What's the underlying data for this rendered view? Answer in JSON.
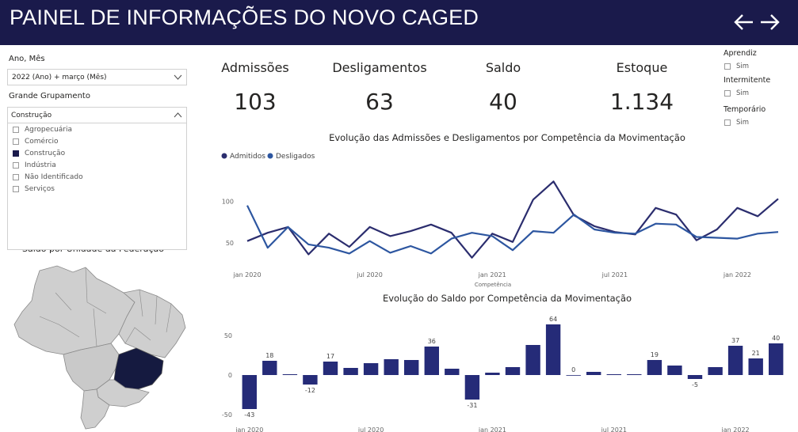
{
  "header": {
    "title": "PAINEL DE INFORMAÇÕES DO NOVO CAGED"
  },
  "colors": {
    "header_bg": "#1a1a4b",
    "admitidos": "#2b2d6e",
    "desligados": "#2d56a0",
    "bar": "#252b78",
    "map_highlight": "#151a40",
    "map_fill": "#c8c8c8"
  },
  "filters": {
    "period_label": "Ano, Mês",
    "period_value": "2022 (Ano) + março (Mês)",
    "group_label": "Grande Grupamento",
    "group_value": "Construção",
    "group_items": [
      {
        "label": "Agropecuária",
        "checked": false
      },
      {
        "label": "Comércio",
        "checked": false
      },
      {
        "label": "Construção",
        "checked": true
      },
      {
        "label": "Indústria",
        "checked": false
      },
      {
        "label": "Não Identificado",
        "checked": false
      },
      {
        "label": "Serviços",
        "checked": false
      }
    ]
  },
  "kpis": [
    {
      "label": "Admissões",
      "value": "103"
    },
    {
      "label": "Desligamentos",
      "value": "63"
    },
    {
      "label": "Saldo",
      "value": "40"
    },
    {
      "label": "Estoque",
      "value": "1.134"
    }
  ],
  "side_filters": [
    {
      "title": "Aprendiz",
      "option": "Sim"
    },
    {
      "title": "Intermitente",
      "option": "Sim"
    },
    {
      "title": "Temporário",
      "option": "Sim"
    }
  ],
  "map": {
    "title": "Saldo por Unidade da Federação"
  },
  "chart_data": [
    {
      "type": "line",
      "title": "Evolução das Admissões e Desligamentos por Competência da Movimentação",
      "xlabel": "Competência",
      "x_ticks": [
        "jan 2020",
        "jul 2020",
        "jan 2021",
        "jul 2021",
        "jan 2022"
      ],
      "y_ticks": [
        50,
        100
      ],
      "ylim": [
        25,
        130
      ],
      "series": [
        {
          "name": "Admitidos",
          "values": [
            52,
            62,
            69,
            36,
            61,
            45,
            69,
            58,
            64,
            72,
            62,
            32,
            61,
            51,
            102,
            124,
            83,
            70,
            63,
            60,
            92,
            84,
            53,
            66,
            92,
            82,
            103
          ]
        },
        {
          "name": "Desligados",
          "values": [
            95,
            44,
            69,
            48,
            44,
            37,
            52,
            38,
            46,
            37,
            55,
            62,
            58,
            41,
            64,
            62,
            84,
            66,
            62,
            61,
            73,
            72,
            57,
            56,
            55,
            61,
            63
          ]
        }
      ]
    },
    {
      "type": "bar",
      "title": "Evolução do Saldo por Competência da Movimentação",
      "x_ticks": [
        "jan 2020",
        "jul 2020",
        "jan 2021",
        "jul 2021",
        "jan 2022"
      ],
      "y_ticks": [
        -50,
        0,
        50
      ],
      "ylim": [
        -50,
        70
      ],
      "values": [
        -43,
        18,
        1,
        -12,
        17,
        9,
        15,
        20,
        19,
        36,
        8,
        -31,
        3,
        10,
        38,
        64,
        0,
        4,
        1,
        1,
        19,
        12,
        -5,
        10,
        37,
        21,
        40
      ],
      "labels": [
        "-43",
        "18",
        "",
        "-12",
        "17",
        "",
        "",
        "",
        "",
        "36",
        "",
        "-31",
        "",
        "",
        "",
        "64",
        "0",
        "",
        "",
        "",
        "19",
        "",
        "-5",
        "",
        "37",
        "21",
        "40"
      ]
    }
  ]
}
